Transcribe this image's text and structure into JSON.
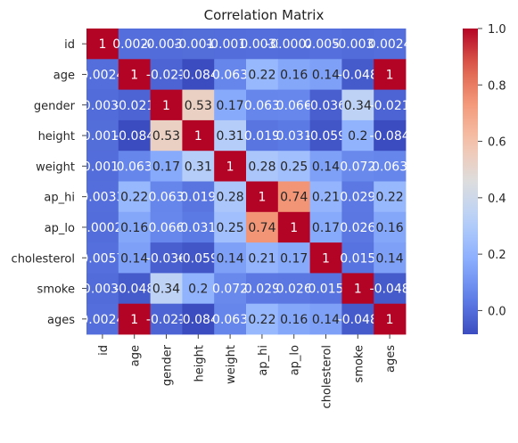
{
  "chart_data": {
    "type": "heatmap",
    "title": "Correlation Matrix",
    "xlabel": "",
    "ylabel": "",
    "categories": [
      "id",
      "age",
      "gender",
      "height",
      "weight",
      "ap_hi",
      "ap_lo",
      "cholesterol",
      "smoke",
      "ages"
    ],
    "values": [
      [
        1,
        0.0024,
        -0.0035,
        -0.0019,
        -0.0013,
        0.0033,
        -0.00024,
        0.0057,
        -0.0037,
        0.0024
      ],
      [
        0.0024,
        1,
        -0.021,
        -0.084,
        0.063,
        0.22,
        0.16,
        0.14,
        -0.048,
        1
      ],
      [
        -0.0035,
        -0.021,
        1,
        0.53,
        0.17,
        0.063,
        0.066,
        -0.036,
        0.34,
        -0.021
      ],
      [
        -0.0019,
        -0.084,
        0.53,
        1,
        0.31,
        0.019,
        0.031,
        -0.059,
        0.2,
        -0.084
      ],
      [
        -0.0013,
        0.063,
        0.17,
        0.31,
        1,
        0.28,
        0.25,
        0.14,
        0.072,
        0.063
      ],
      [
        0.0033,
        0.22,
        0.063,
        0.019,
        0.28,
        1,
        0.74,
        0.21,
        0.029,
        0.22
      ],
      [
        -0.00024,
        0.16,
        0.066,
        0.031,
        0.25,
        0.74,
        1,
        0.17,
        0.026,
        0.16
      ],
      [
        0.0057,
        0.14,
        -0.036,
        -0.059,
        0.14,
        0.21,
        0.17,
        1,
        0.015,
        0.14
      ],
      [
        -0.0037,
        -0.048,
        0.34,
        0.2,
        0.072,
        0.029,
        0.026,
        0.015,
        1,
        -0.048
      ],
      [
        0.0024,
        1,
        -0.021,
        -0.084,
        0.063,
        0.22,
        0.16,
        0.14,
        -0.048,
        1
      ]
    ],
    "annotations": [
      [
        "1",
        "0.0024",
        "-0.0035",
        "-0.0019",
        "-0.0013",
        "0.0033",
        "-0.00024",
        "0.0057",
        "-0.0037",
        "0.0024"
      ],
      [
        "0.0024",
        "1",
        "-0.021",
        "-0.084",
        "0.063",
        "0.22",
        "0.16",
        "0.14",
        "-0.048",
        "1"
      ],
      [
        "-0.0035",
        "-0.021",
        "1",
        "0.53",
        "0.17",
        "0.063",
        "0.066",
        "-0.036",
        "0.34",
        "-0.021"
      ],
      [
        "-0.0019",
        "-0.084",
        "0.53",
        "1",
        "0.31",
        "0.019",
        "0.031",
        "-0.059",
        "0.2",
        "-0.084"
      ],
      [
        "-0.0013",
        "0.063",
        "0.17",
        "0.31",
        "1",
        "0.28",
        "0.25",
        "0.14",
        "0.072",
        "0.063"
      ],
      [
        "0.0033",
        "0.22",
        "0.063",
        "0.019",
        "0.28",
        "1",
        "0.74",
        "0.21",
        "0.029",
        "0.22"
      ],
      [
        "-0.00024",
        "0.16",
        "0.066",
        "0.031",
        "0.25",
        "0.74",
        "1",
        "0.17",
        "0.026",
        "0.16"
      ],
      [
        "0.0057",
        "0.14",
        "-0.036",
        "-0.059",
        "0.14",
        "0.21",
        "0.17",
        "1",
        "0.015",
        "0.14"
      ],
      [
        "-0.0037",
        "-0.048",
        "0.34",
        "0.2",
        "0.072",
        "0.029",
        "0.026",
        "0.015",
        "1",
        "-0.048"
      ],
      [
        "0.0024",
        "1",
        "-0.021",
        "-0.084",
        "0.063",
        "0.22",
        "0.16",
        "0.14",
        "-0.048",
        "1"
      ]
    ],
    "colorbar": {
      "ticks": [
        0.0,
        0.2,
        0.4,
        0.6,
        0.8,
        1.0
      ],
      "tick_labels": [
        "0.0",
        "0.2",
        "0.4",
        "0.6",
        "0.8",
        "1.0"
      ],
      "range": [
        -0.084,
        1.0
      ]
    },
    "colormap": "coolwarm",
    "grid": false,
    "legend": "colorbar-right"
  }
}
